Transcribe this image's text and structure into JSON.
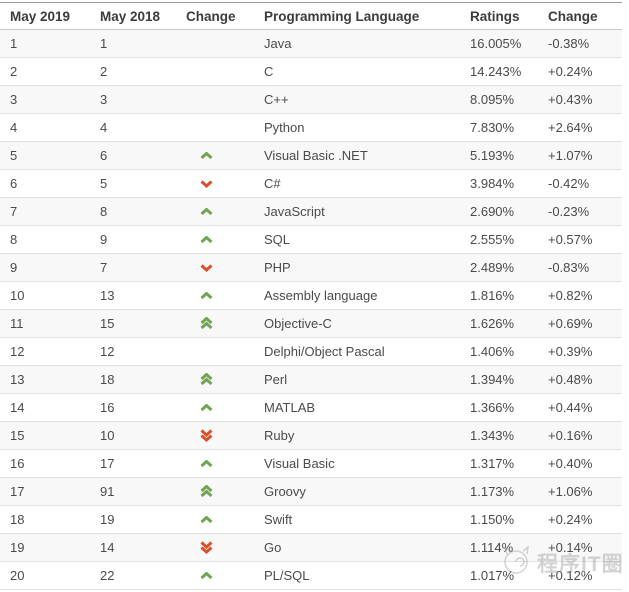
{
  "table": {
    "headers": {
      "rank_now": "May 2019",
      "rank_prev": "May 2018",
      "change_arrow": "Change",
      "language": "Programming Language",
      "ratings": "Ratings",
      "change_pct": "Change"
    },
    "rows": [
      {
        "rank_now": "1",
        "rank_prev": "1",
        "arrow": "none",
        "language": "Java",
        "ratings": "16.005%",
        "change": "-0.38%"
      },
      {
        "rank_now": "2",
        "rank_prev": "2",
        "arrow": "none",
        "language": "C",
        "ratings": "14.243%",
        "change": "+0.24%"
      },
      {
        "rank_now": "3",
        "rank_prev": "3",
        "arrow": "none",
        "language": "C++",
        "ratings": "8.095%",
        "change": "+0.43%"
      },
      {
        "rank_now": "4",
        "rank_prev": "4",
        "arrow": "none",
        "language": "Python",
        "ratings": "7.830%",
        "change": "+2.64%"
      },
      {
        "rank_now": "5",
        "rank_prev": "6",
        "arrow": "up",
        "language": "Visual Basic .NET",
        "ratings": "5.193%",
        "change": "+1.07%"
      },
      {
        "rank_now": "6",
        "rank_prev": "5",
        "arrow": "down",
        "language": "C#",
        "ratings": "3.984%",
        "change": "-0.42%"
      },
      {
        "rank_now": "7",
        "rank_prev": "8",
        "arrow": "up",
        "language": "JavaScript",
        "ratings": "2.690%",
        "change": "-0.23%"
      },
      {
        "rank_now": "8",
        "rank_prev": "9",
        "arrow": "up",
        "language": "SQL",
        "ratings": "2.555%",
        "change": "+0.57%"
      },
      {
        "rank_now": "9",
        "rank_prev": "7",
        "arrow": "down",
        "language": "PHP",
        "ratings": "2.489%",
        "change": "-0.83%"
      },
      {
        "rank_now": "10",
        "rank_prev": "13",
        "arrow": "up",
        "language": "Assembly language",
        "ratings": "1.816%",
        "change": "+0.82%"
      },
      {
        "rank_now": "11",
        "rank_prev": "15",
        "arrow": "up2",
        "language": "Objective-C",
        "ratings": "1.626%",
        "change": "+0.69%"
      },
      {
        "rank_now": "12",
        "rank_prev": "12",
        "arrow": "none",
        "language": "Delphi/Object Pascal",
        "ratings": "1.406%",
        "change": "+0.39%"
      },
      {
        "rank_now": "13",
        "rank_prev": "18",
        "arrow": "up2",
        "language": "Perl",
        "ratings": "1.394%",
        "change": "+0.48%"
      },
      {
        "rank_now": "14",
        "rank_prev": "16",
        "arrow": "up",
        "language": "MATLAB",
        "ratings": "1.366%",
        "change": "+0.44%"
      },
      {
        "rank_now": "15",
        "rank_prev": "10",
        "arrow": "down2",
        "language": "Ruby",
        "ratings": "1.343%",
        "change": "+0.16%"
      },
      {
        "rank_now": "16",
        "rank_prev": "17",
        "arrow": "up",
        "language": "Visual Basic",
        "ratings": "1.317%",
        "change": "+0.40%"
      },
      {
        "rank_now": "17",
        "rank_prev": "91",
        "arrow": "up2",
        "language": "Groovy",
        "ratings": "1.173%",
        "change": "+1.06%"
      },
      {
        "rank_now": "18",
        "rank_prev": "19",
        "arrow": "up",
        "language": "Swift",
        "ratings": "1.150%",
        "change": "+0.24%"
      },
      {
        "rank_now": "19",
        "rank_prev": "14",
        "arrow": "down2",
        "language": "Go",
        "ratings": "1.114%",
        "change": "+0.14%"
      },
      {
        "rank_now": "20",
        "rank_prev": "22",
        "arrow": "up",
        "language": "PL/SQL",
        "ratings": "1.017%",
        "change": "+0.12%"
      }
    ]
  },
  "colors": {
    "arrow_up": "#72a352",
    "arrow_down": "#d9512c",
    "alt_row_bg": "#f8f8f8",
    "header_text": "#3c3c3c",
    "body_text": "#4a4a4a"
  },
  "watermark": {
    "text": "程序IT圈",
    "logo": "cat-face-logo"
  }
}
